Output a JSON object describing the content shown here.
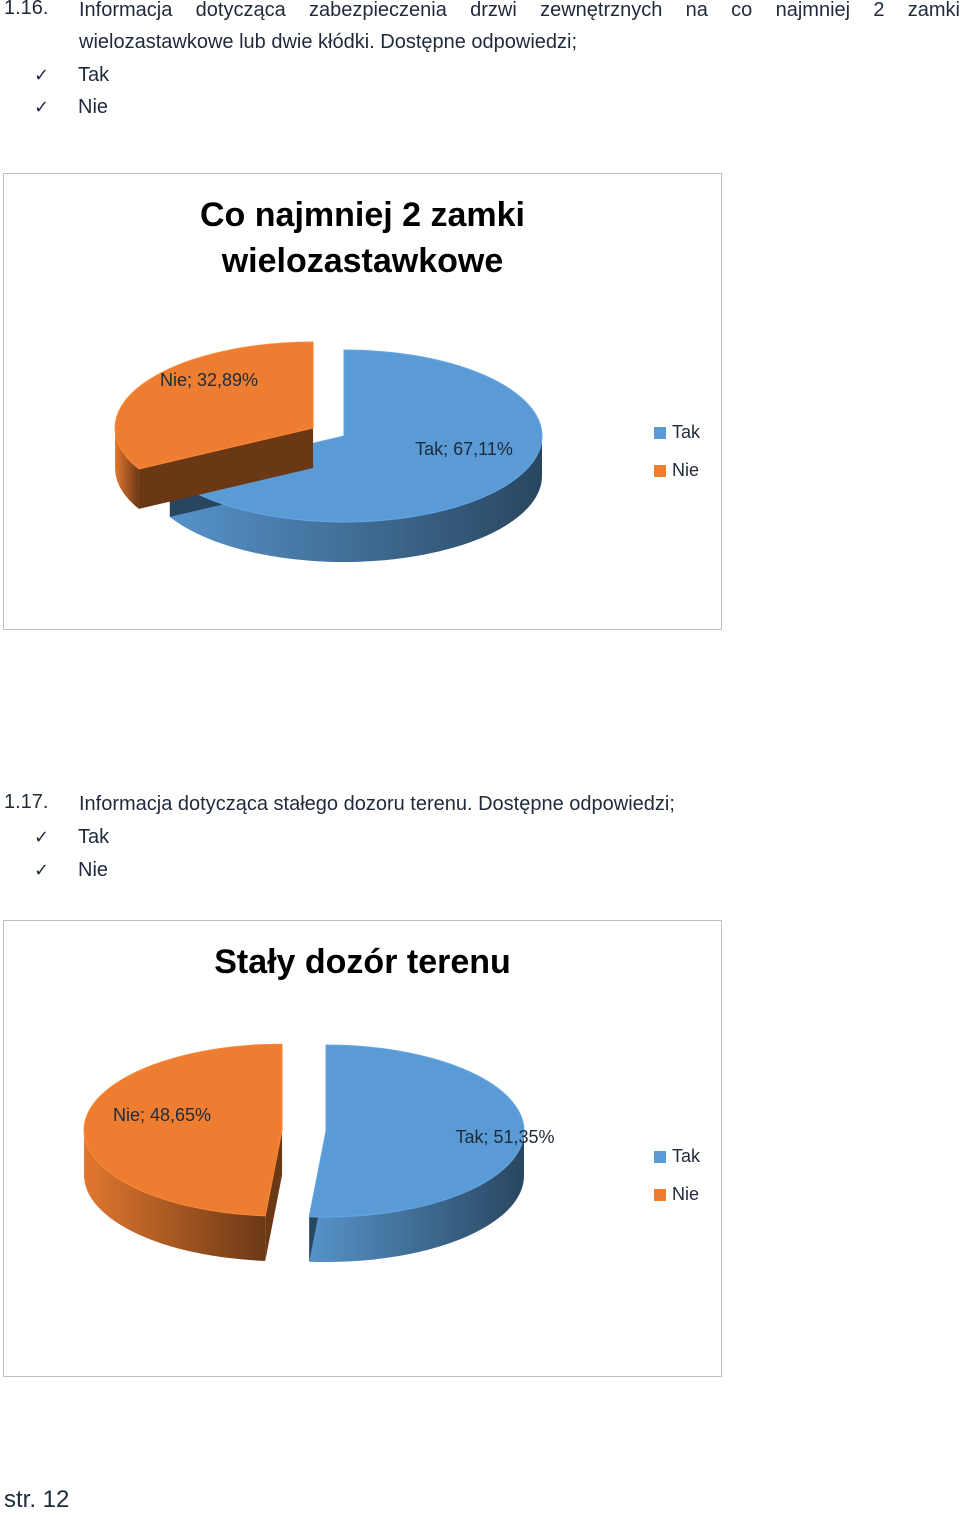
{
  "sections": [
    {
      "number": "1.16.",
      "text": "Informacja dotycząca zabezpieczenia drzwi zewnętrznych na co najmniej 2 zamki wielozastawkowe lub dwie kłódki. Dostępne odpowiedzi;",
      "options": [
        "Tak",
        "Nie"
      ],
      "check_icon": "checkmark-icon"
    },
    {
      "number": "1.17.",
      "text": "Informacja dotycząca stałego dozoru terenu. Dostępne odpowiedzi;",
      "options": [
        "Tak",
        "Nie"
      ],
      "check_icon": "checkmark-icon"
    }
  ],
  "chart_data": [
    {
      "type": "pie",
      "style": "3d-exploded",
      "title_lines": [
        "Co najmniej 2 zamki",
        "wielozastawkowe"
      ],
      "categories": [
        "Tak",
        "Nie"
      ],
      "values": [
        67.11,
        32.89
      ],
      "data_labels": [
        "Tak; 67,11%",
        "Nie; 32,89%"
      ],
      "colors": [
        "#5b9bd5",
        "#ed7d31"
      ],
      "legend": [
        "Tak",
        "Nie"
      ],
      "legend_position": "right"
    },
    {
      "type": "pie",
      "style": "3d-exploded",
      "title_lines": [
        "Stały dozór terenu"
      ],
      "categories": [
        "Tak",
        "Nie"
      ],
      "values": [
        51.35,
        48.65
      ],
      "data_labels": [
        "Tak; 51,35%",
        "Nie; 48,65%"
      ],
      "colors": [
        "#5b9bd5",
        "#ed7d31"
      ],
      "legend": [
        "Tak",
        "Nie"
      ],
      "legend_position": "right"
    }
  ],
  "footer": {
    "page": "str. 12"
  }
}
